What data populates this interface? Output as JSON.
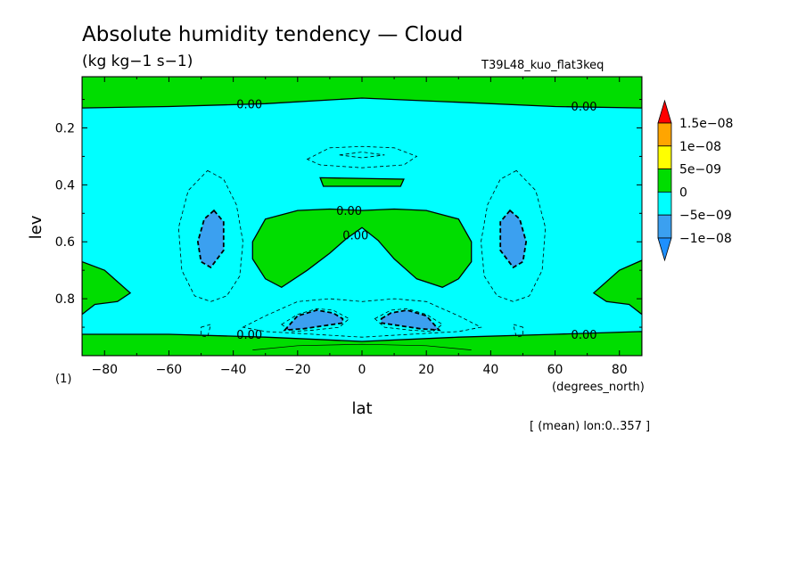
{
  "colors": {
    "band_lt_m1e08": "#1e90ff",
    "band_m1e08_m5e09": "#3ba0f0",
    "band_m5e09_0": "#00ffff",
    "band_0_5e09": "#00dd00",
    "band_5e09_1e08": "#ffff00",
    "band_1e08_15e08": "#ffa500",
    "band_gt_15e08": "#ff0000",
    "contour_line": "#000000"
  },
  "chart_data": {
    "type": "heatmap",
    "title": "Absolute humidity tendency — Cloud",
    "units": "(kg kg−1 s−1)",
    "experiment": "T39L48_kuo_flat3keq",
    "xlabel": "lat",
    "x_unit_label": "(degrees_north)",
    "ylabel": "lev",
    "y_unit_label": "(1)",
    "footnote": "[ (mean) lon:0..357 ]",
    "xlim": [
      -87,
      87
    ],
    "ylim": [
      1.0,
      0.02
    ],
    "xticks": [
      -80,
      -60,
      -40,
      -20,
      0,
      20,
      40,
      60,
      80
    ],
    "xtick_labels": [
      "−80",
      "−60",
      "−40",
      "−20",
      "0",
      "20",
      "40",
      "60",
      "80"
    ],
    "yticks": [
      0.2,
      0.4,
      0.6,
      0.8
    ],
    "ytick_labels": [
      "0.2",
      "0.4",
      "0.6",
      "0.8"
    ],
    "colorbar": {
      "levels": [
        -1e-08,
        -5e-09,
        0,
        5e-09,
        1e-08,
        1.5e-08
      ],
      "labels": [
        "−1e−08",
        "−5e−09",
        "0",
        "5e−09",
        "1e−08",
        "1.5e−08"
      ]
    },
    "contour_label": "0.00",
    "regions": [
      {
        "value_range": "0 to 5e-09",
        "description": "positive upper layer",
        "polygon": [
          [
            -87,
            0.02
          ],
          [
            87,
            0.02
          ],
          [
            87,
            0.13
          ],
          [
            60,
            0.125
          ],
          [
            30,
            0.11
          ],
          [
            0,
            0.095
          ],
          [
            -30,
            0.115
          ],
          [
            -60,
            0.125
          ],
          [
            -87,
            0.13
          ]
        ]
      },
      {
        "value_range": "0 to 5e-09",
        "description": "positive lower layer",
        "polygon": [
          [
            -87,
            0.925
          ],
          [
            -60,
            0.925
          ],
          [
            -30,
            0.935
          ],
          [
            0,
            0.95
          ],
          [
            30,
            0.935
          ],
          [
            60,
            0.925
          ],
          [
            87,
            0.915
          ],
          [
            87,
            1.0
          ],
          [
            -87,
            1.0
          ]
        ]
      },
      {
        "value_range": "0 to 5e-09",
        "description": "south polar mid-level",
        "polygon": [
          [
            -87,
            0.67
          ],
          [
            -80,
            0.7
          ],
          [
            -72,
            0.78
          ],
          [
            -76,
            0.81
          ],
          [
            -83,
            0.82
          ],
          [
            -87,
            0.855
          ]
        ]
      },
      {
        "value_range": "0 to 5e-09",
        "description": "north polar mid-level",
        "polygon": [
          [
            87,
            0.665
          ],
          [
            80,
            0.7
          ],
          [
            72,
            0.78
          ],
          [
            76,
            0.81
          ],
          [
            83,
            0.82
          ],
          [
            87,
            0.855
          ]
        ]
      },
      {
        "value_range": "0 to 5e-09",
        "description": "upper thin band near equator",
        "polygon": [
          [
            -13,
            0.375
          ],
          [
            13,
            0.38
          ],
          [
            12,
            0.405
          ],
          [
            -12,
            0.405
          ]
        ]
      },
      {
        "value_range": "0 to 5e-09",
        "description": "central equatorial region",
        "polygon": [
          [
            -30,
            0.52
          ],
          [
            -20,
            0.49
          ],
          [
            -10,
            0.485
          ],
          [
            0,
            0.49
          ],
          [
            10,
            0.485
          ],
          [
            20,
            0.49
          ],
          [
            30,
            0.52
          ],
          [
            34,
            0.6
          ],
          [
            34,
            0.67
          ],
          [
            30,
            0.73
          ],
          [
            25,
            0.76
          ],
          [
            17,
            0.73
          ],
          [
            10,
            0.66
          ],
          [
            5,
            0.595
          ],
          [
            0,
            0.55
          ],
          [
            -5,
            0.59
          ],
          [
            -10,
            0.64
          ],
          [
            -17,
            0.7
          ],
          [
            -25,
            0.76
          ],
          [
            -30,
            0.73
          ],
          [
            -34,
            0.66
          ],
          [
            -34,
            0.6
          ]
        ]
      },
      {
        "value_range": "-1e-08 to -5e-09",
        "description": "south subtropics",
        "polygon": [
          [
            -46,
            0.49
          ],
          [
            -43,
            0.53
          ],
          [
            -43,
            0.63
          ],
          [
            -47,
            0.69
          ],
          [
            -50,
            0.67
          ],
          [
            -51,
            0.6
          ],
          [
            -49,
            0.52
          ]
        ]
      },
      {
        "value_range": "-1e-08 to -5e-09",
        "description": "north subtropics",
        "polygon": [
          [
            46,
            0.49
          ],
          [
            43,
            0.53
          ],
          [
            43,
            0.63
          ],
          [
            47,
            0.69
          ],
          [
            50,
            0.67
          ],
          [
            51,
            0.6
          ],
          [
            49,
            0.52
          ]
        ]
      },
      {
        "value_range": "-1e-08 to -5e-09",
        "description": "south lower",
        "polygon": [
          [
            -24,
            0.91
          ],
          [
            -20,
            0.86
          ],
          [
            -14,
            0.84
          ],
          [
            -9,
            0.85
          ],
          [
            -6,
            0.87
          ],
          [
            -6,
            0.885
          ],
          [
            -12,
            0.895
          ],
          [
            -18,
            0.905
          ]
        ]
      },
      {
        "value_range": "-1e-08 to -5e-09",
        "description": "north lower",
        "polygon": [
          [
            6,
            0.87
          ],
          [
            9,
            0.85
          ],
          [
            14,
            0.84
          ],
          [
            20,
            0.86
          ],
          [
            24,
            0.91
          ],
          [
            18,
            0.905
          ],
          [
            12,
            0.895
          ],
          [
            6,
            0.885
          ]
        ]
      }
    ],
    "zero_contour_labels": [
      [
        -35,
        0.925
      ],
      [
        -35,
        0.115
      ],
      [
        69,
        0.123
      ],
      [
        69,
        0.925
      ],
      [
        -4,
        0.49
      ],
      [
        -2,
        0.575
      ]
    ],
    "dashed_contours": [
      [
        [
          -48,
          0.35
        ],
        [
          -43,
          0.38
        ],
        [
          -39,
          0.47
        ],
        [
          -37,
          0.6
        ],
        [
          -38,
          0.72
        ],
        [
          -42,
          0.79
        ],
        [
          -47,
          0.81
        ],
        [
          -52,
          0.79
        ],
        [
          -56,
          0.7
        ],
        [
          -57,
          0.55
        ],
        [
          -54,
          0.42
        ]
      ],
      [
        [
          48,
          0.35
        ],
        [
          43,
          0.38
        ],
        [
          39,
          0.47
        ],
        [
          37,
          0.6
        ],
        [
          38,
          0.72
        ],
        [
          42,
          0.79
        ],
        [
          47,
          0.81
        ],
        [
          52,
          0.79
        ],
        [
          56,
          0.7
        ],
        [
          57,
          0.55
        ],
        [
          54,
          0.42
        ]
      ],
      [
        [
          -17,
          0.31
        ],
        [
          -10,
          0.27
        ],
        [
          0,
          0.265
        ],
        [
          10,
          0.27
        ],
        [
          17,
          0.3
        ],
        [
          13,
          0.33
        ],
        [
          0,
          0.34
        ],
        [
          -13,
          0.33
        ]
      ],
      [
        [
          -7,
          0.295
        ],
        [
          0,
          0.285
        ],
        [
          7,
          0.295
        ],
        [
          0,
          0.305
        ]
      ],
      [
        [
          -37,
          0.9
        ],
        [
          -30,
          0.86
        ],
        [
          -20,
          0.81
        ],
        [
          -10,
          0.8
        ],
        [
          0,
          0.81
        ],
        [
          10,
          0.8
        ],
        [
          20,
          0.81
        ],
        [
          30,
          0.86
        ],
        [
          37,
          0.9
        ],
        [
          30,
          0.915
        ],
        [
          15,
          0.925
        ],
        [
          0,
          0.935
        ],
        [
          -15,
          0.925
        ],
        [
          -30,
          0.915
        ]
      ],
      [
        [
          -25,
          0.89
        ],
        [
          -20,
          0.855
        ],
        [
          -14,
          0.835
        ],
        [
          -9,
          0.84
        ],
        [
          -4,
          0.87
        ],
        [
          -7,
          0.9
        ],
        [
          -15,
          0.91
        ],
        [
          -22,
          0.915
        ]
      ],
      [
        [
          4,
          0.87
        ],
        [
          9,
          0.84
        ],
        [
          14,
          0.835
        ],
        [
          20,
          0.855
        ],
        [
          25,
          0.89
        ],
        [
          22,
          0.915
        ],
        [
          15,
          0.91
        ],
        [
          7,
          0.9
        ]
      ],
      [
        [
          -50,
          0.9
        ],
        [
          -47,
          0.89
        ],
        [
          -48,
          0.935
        ],
        [
          -50,
          0.93
        ]
      ],
      [
        [
          50,
          0.9
        ],
        [
          47,
          0.89
        ],
        [
          48,
          0.935
        ],
        [
          50,
          0.93
        ]
      ]
    ],
    "solid_extra_contours": [
      [
        [
          -34,
          0.98
        ],
        [
          -20,
          0.965
        ],
        [
          0,
          0.96
        ],
        [
          20,
          0.965
        ],
        [
          34,
          0.98
        ]
      ]
    ]
  }
}
